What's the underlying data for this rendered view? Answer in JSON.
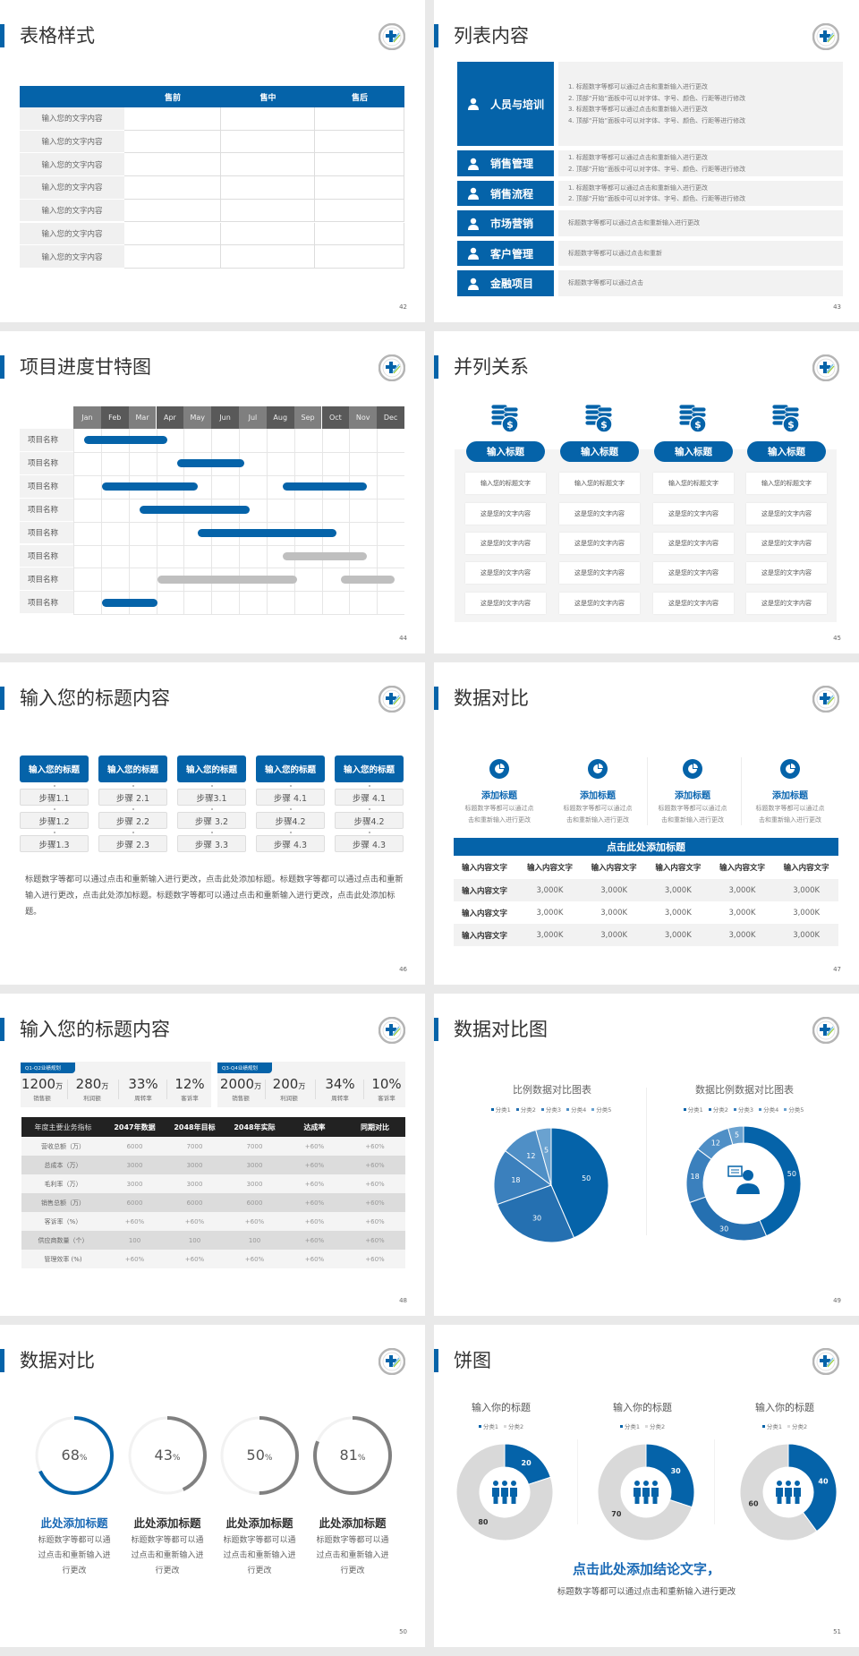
{
  "theme": {
    "accent": "#0563a9",
    "gray_bar": "#bfbfbf",
    "dark": "#222222"
  },
  "slides": [
    {
      "page": "42",
      "title": "表格样式",
      "table": {
        "headers": [
          "",
          "售前",
          "售中",
          "售后"
        ],
        "rows": [
          "输入您的文字内容",
          "输入您的文字内容",
          "输入您的文字内容",
          "输入您的文字内容",
          "输入您的文字内容",
          "输入您的文字内容",
          "输入您的文字内容"
        ]
      }
    },
    {
      "page": "43",
      "title": "列表内容",
      "items": [
        {
          "icon": "people-training-icon",
          "label": "人员与培训",
          "lines": [
            "1.  标题数字等都可以通过点击和重新输入进行更改",
            "2.  顶部“开始”面板中可以对字体、字号、颜色、行距等进行修改",
            "3.  标题数字等都可以通过点击和重新输入进行更改",
            "4.  顶部“开始”面板中可以对字体、字号、颜色、行距等进行修改"
          ]
        },
        {
          "icon": "user-gear-icon",
          "label": "销售管理",
          "lines": [
            "1.  标题数字等都可以通过点击和重新输入进行更改",
            "2.  顶部“开始”面板中可以对字体、字号、颜色、行距等进行修改"
          ]
        },
        {
          "icon": "cycle-icon",
          "label": "销售流程",
          "lines": [
            "1.  标题数字等都可以通过点击和重新输入进行更改",
            "2.  顶部“开始”面板中可以对字体、字号、颜色、行距等进行修改"
          ]
        },
        {
          "icon": "bar-chart-icon",
          "label": "市场营销",
          "lines": [
            "标题数字等都可以通过点击和重新输入进行更改"
          ]
        },
        {
          "icon": "customers-icon",
          "label": "客户管理",
          "lines": [
            "标题数字等都可以通过点击和重新"
          ]
        },
        {
          "icon": "finance-hand-icon",
          "label": "金融项目",
          "lines": [
            "标题数字等都可以通过点击"
          ]
        }
      ]
    },
    {
      "page": "44",
      "title": "项目进度甘特图"
    },
    {
      "page": "45",
      "title": "并列关系",
      "columns": [
        {
          "icon": "coins-dollar-icon",
          "label": "输入标题",
          "cells": [
            "输入您的标题文字",
            "这是您的文字内容",
            "这是您的文字内容",
            "这是您的文字内容",
            "这是您的文字内容"
          ]
        },
        {
          "icon": "coins-dollar-icon",
          "label": "输入标题",
          "cells": [
            "输入您的标题文字",
            "这是您的文字内容",
            "这是您的文字内容",
            "这是您的文字内容",
            "这是您的文字内容"
          ]
        },
        {
          "icon": "coins-dollar-icon",
          "label": "输入标题",
          "cells": [
            "输入您的标题文字",
            "这是您的文字内容",
            "这是您的文字内容",
            "这是您的文字内容",
            "这是您的文字内容"
          ]
        },
        {
          "icon": "coins-dollar-icon",
          "label": "输入标题",
          "cells": [
            "输入您的标题文字",
            "这是您的文字内容",
            "这是您的文字内容",
            "这是您的文字内容",
            "这是您的文字内容"
          ]
        }
      ]
    },
    {
      "page": "46",
      "title": "输入您的标题内容",
      "columns": [
        {
          "header": "输入您的标题",
          "steps": [
            "步骤1.1",
            "步骤1.2",
            "步骤1.3"
          ]
        },
        {
          "header": "输入您的标题",
          "steps": [
            "步骤 2.1",
            "步骤 2.2",
            "步骤 2.3"
          ]
        },
        {
          "header": "输入您的标题",
          "steps": [
            "步骤3.1",
            "步骤 3.2",
            "步骤 3.3"
          ]
        },
        {
          "header": "输入您的标题",
          "steps": [
            "步骤 4.1",
            "步骤4.2",
            "步骤 4.3"
          ]
        },
        {
          "header": "输入您的标题",
          "steps": [
            "步骤 4.1",
            "步骤4.2",
            "步骤 4.3"
          ]
        }
      ],
      "paragraph": "标题数字等都可以通过点击和重新输入进行更改，点击此处添加标题。标题数字等都可以通过点击和重新输入进行更改，点击此处添加标题。标题数字等都可以通过点击和重新输入进行更改，点击此处添加标题。"
    },
    {
      "page": "47",
      "title": "数据对比",
      "features": [
        {
          "icon": "pie-icon",
          "title": "添加标题",
          "desc": [
            "标题数字等都可以通过点",
            "击和重新输入进行更改"
          ]
        },
        {
          "icon": "pie-icon",
          "title": "添加标题",
          "desc": [
            "标题数字等都可以通过点",
            "击和重新输入进行更改"
          ]
        },
        {
          "icon": "pie-icon",
          "title": "添加标题",
          "desc": [
            "标题数字等都可以通过点",
            "击和重新输入进行更改"
          ]
        },
        {
          "icon": "pie-icon",
          "title": "添加标题",
          "desc": [
            "标题数字等都可以通过点",
            "击和重新输入进行更改"
          ]
        }
      ],
      "banner": "点击此处添加标题",
      "table": {
        "headers": [
          "输入内容文字",
          "输入内容文字",
          "输入内容文字",
          "输入内容文字",
          "输入内容文字",
          "输入内容文字"
        ],
        "rows": [
          [
            "输入内容文字",
            "3,000K",
            "3,000K",
            "3,000K",
            "3,000K",
            "3,000K"
          ],
          [
            "输入内容文字",
            "3,000K",
            "3,000K",
            "3,000K",
            "3,000K",
            "3,000K"
          ],
          [
            "输入内容文字",
            "3,000K",
            "3,000K",
            "3,000K",
            "3,000K",
            "3,000K"
          ]
        ]
      }
    },
    {
      "page": "48",
      "title": "输入您的标题内容",
      "kpi_groups": [
        {
          "tag": "Q1-Q2业绩规划",
          "items": [
            {
              "value": "1200",
              "unit": "万",
              "label": "销售额"
            },
            {
              "value": "280",
              "unit": "万",
              "label": "利润额"
            },
            {
              "value": "33%",
              "unit": "",
              "label": "周转率"
            },
            {
              "value": "12%",
              "unit": "",
              "label": "客诉率"
            }
          ]
        },
        {
          "tag": "Q3-Q4业绩规划",
          "items": [
            {
              "value": "2000",
              "unit": "万",
              "label": "销售额"
            },
            {
              "value": "200",
              "unit": "万",
              "label": "利润额"
            },
            {
              "value": "34%",
              "unit": "",
              "label": "周转率"
            },
            {
              "value": "10%",
              "unit": "",
              "label": "客诉率"
            }
          ]
        }
      ],
      "table": {
        "headers": [
          "年度主要业务指标",
          "2047年数据",
          "2048年目标",
          "2048年实际",
          "达成率",
          "同期对比"
        ],
        "rows": [
          [
            "营收总额（万）",
            "6000",
            "7000",
            "7000",
            "+60%",
            "+60%"
          ],
          [
            "总成本（万）",
            "3000",
            "3000",
            "3000",
            "+60%",
            "+60%"
          ],
          [
            "毛利率（万）",
            "3000",
            "3000",
            "3000",
            "+60%",
            "+60%"
          ],
          [
            "销售总额（万）",
            "6000",
            "6000",
            "6000",
            "+60%",
            "+60%"
          ],
          [
            "客诉率（%）",
            "+60%",
            "+60%",
            "+60%",
            "+60%",
            "+60%"
          ],
          [
            "供应商数量（个）",
            "100",
            "100",
            "100",
            "+60%",
            "+60%"
          ],
          [
            "管理效率 (%)",
            "+60%",
            "+60%",
            "+60%",
            "+60%",
            "+60%"
          ]
        ]
      }
    },
    {
      "page": "49",
      "title": "数据对比图"
    },
    {
      "page": "50",
      "title": "数据对比",
      "items": [
        {
          "title": "此处添加标题",
          "desc": [
            "标题数字等都可以通",
            "过点击和重新输入进",
            "行更改"
          ]
        },
        {
          "title": "此处添加标题",
          "desc": [
            "标题数字等都可以通",
            "过点击和重新输入进",
            "行更改"
          ]
        },
        {
          "title": "此处添加标题",
          "desc": [
            "标题数字等都可以通",
            "过点击和重新输入进",
            "行更改"
          ]
        },
        {
          "title": "此处添加标题",
          "desc": [
            "标题数字等都可以通",
            "过点击和重新输入进",
            "行更改"
          ]
        }
      ]
    },
    {
      "page": "51",
      "title": "饼图",
      "conclusion": "点击此处添加结论文字，",
      "subtext": "标题数字等都可以通过点击和重新输入进行更改"
    }
  ],
  "chart_data": [
    {
      "type": "gantt",
      "slide": "44",
      "categories": [
        "Jan",
        "Feb",
        "Mar",
        "Apr",
        "May",
        "Jun",
        "Jul",
        "Aug",
        "Sep",
        "Oct",
        "Nov",
        "Dec"
      ],
      "rows": [
        {
          "label": "项目名称",
          "bars": [
            {
              "start": 0.4,
              "end": 3.4,
              "status": "active"
            }
          ]
        },
        {
          "label": "项目名称",
          "bars": [
            {
              "start": 3.75,
              "end": 6.2,
              "status": "active"
            }
          ]
        },
        {
          "label": "项目名称",
          "bars": [
            {
              "start": 1.05,
              "end": 4.5,
              "status": "active"
            },
            {
              "start": 7.6,
              "end": 10.65,
              "status": "active"
            }
          ]
        },
        {
          "label": "项目名称",
          "bars": [
            {
              "start": 2.4,
              "end": 6.4,
              "status": "active"
            }
          ]
        },
        {
          "label": "项目名称",
          "bars": [
            {
              "start": 4.5,
              "end": 9.55,
              "status": "active"
            }
          ]
        },
        {
          "label": "项目名称",
          "bars": [
            {
              "start": 7.6,
              "end": 10.65,
              "status": "planned"
            }
          ]
        },
        {
          "label": "项目名称",
          "bars": [
            {
              "start": 3.05,
              "end": 8.1,
              "status": "planned"
            },
            {
              "start": 9.7,
              "end": 11.65,
              "status": "planned"
            }
          ]
        },
        {
          "label": "项目名称",
          "bars": [
            {
              "start": 1.05,
              "end": 3.05,
              "status": "active"
            }
          ]
        }
      ],
      "colors": {
        "active": "#0563a9",
        "planned": "#bfbfbf"
      }
    },
    {
      "type": "pie",
      "slide": "49",
      "title": "比例数据对比图表",
      "legend": "top",
      "categories": [
        "分类1",
        "分类2",
        "分类3",
        "分类4",
        "分类5"
      ],
      "values": [
        50,
        30,
        18,
        12,
        5
      ],
      "colors": [
        "#0563a9",
        "#2570b1",
        "#3b80bd",
        "#4f8fc6",
        "#6aa2d0"
      ]
    },
    {
      "type": "donut",
      "slide": "49",
      "title": "数据比例数据对比图表",
      "legend": "top",
      "center_icon": "customer-service-icon",
      "categories": [
        "分类1",
        "分类2",
        "分类3",
        "分类4",
        "分类5"
      ],
      "values": [
        50,
        30,
        18,
        12,
        5
      ],
      "colors": [
        "#0563a9",
        "#2570b1",
        "#3b80bd",
        "#4f8fc6",
        "#6aa2d0"
      ]
    },
    {
      "type": "progress_rings",
      "slide": "50",
      "values": [
        68,
        43,
        50,
        81
      ],
      "labels": [
        "68",
        "43",
        "50",
        "81"
      ],
      "unit": "%",
      "colors": [
        "#0563a9",
        "#808080",
        "#808080",
        "#808080"
      ]
    },
    {
      "type": "donut",
      "slide": "51",
      "title": "输入你的标题",
      "legend": "top",
      "center_icon": "team-icon",
      "categories": [
        "分类1",
        "分类2"
      ],
      "values": [
        20,
        80
      ],
      "colors": [
        "#0563a9",
        "#d9d9d9"
      ]
    },
    {
      "type": "donut",
      "slide": "51",
      "title": "输入你的标题",
      "legend": "top",
      "center_icon": "team-icon",
      "categories": [
        "分类1",
        "分类2"
      ],
      "values": [
        30,
        70
      ],
      "colors": [
        "#0563a9",
        "#d9d9d9"
      ]
    },
    {
      "type": "donut",
      "slide": "51",
      "title": "输入你的标题",
      "legend": "top",
      "center_icon": "team-icon",
      "categories": [
        "分类1",
        "分类2"
      ],
      "values": [
        40,
        60
      ],
      "colors": [
        "#0563a9",
        "#d9d9d9"
      ]
    }
  ]
}
